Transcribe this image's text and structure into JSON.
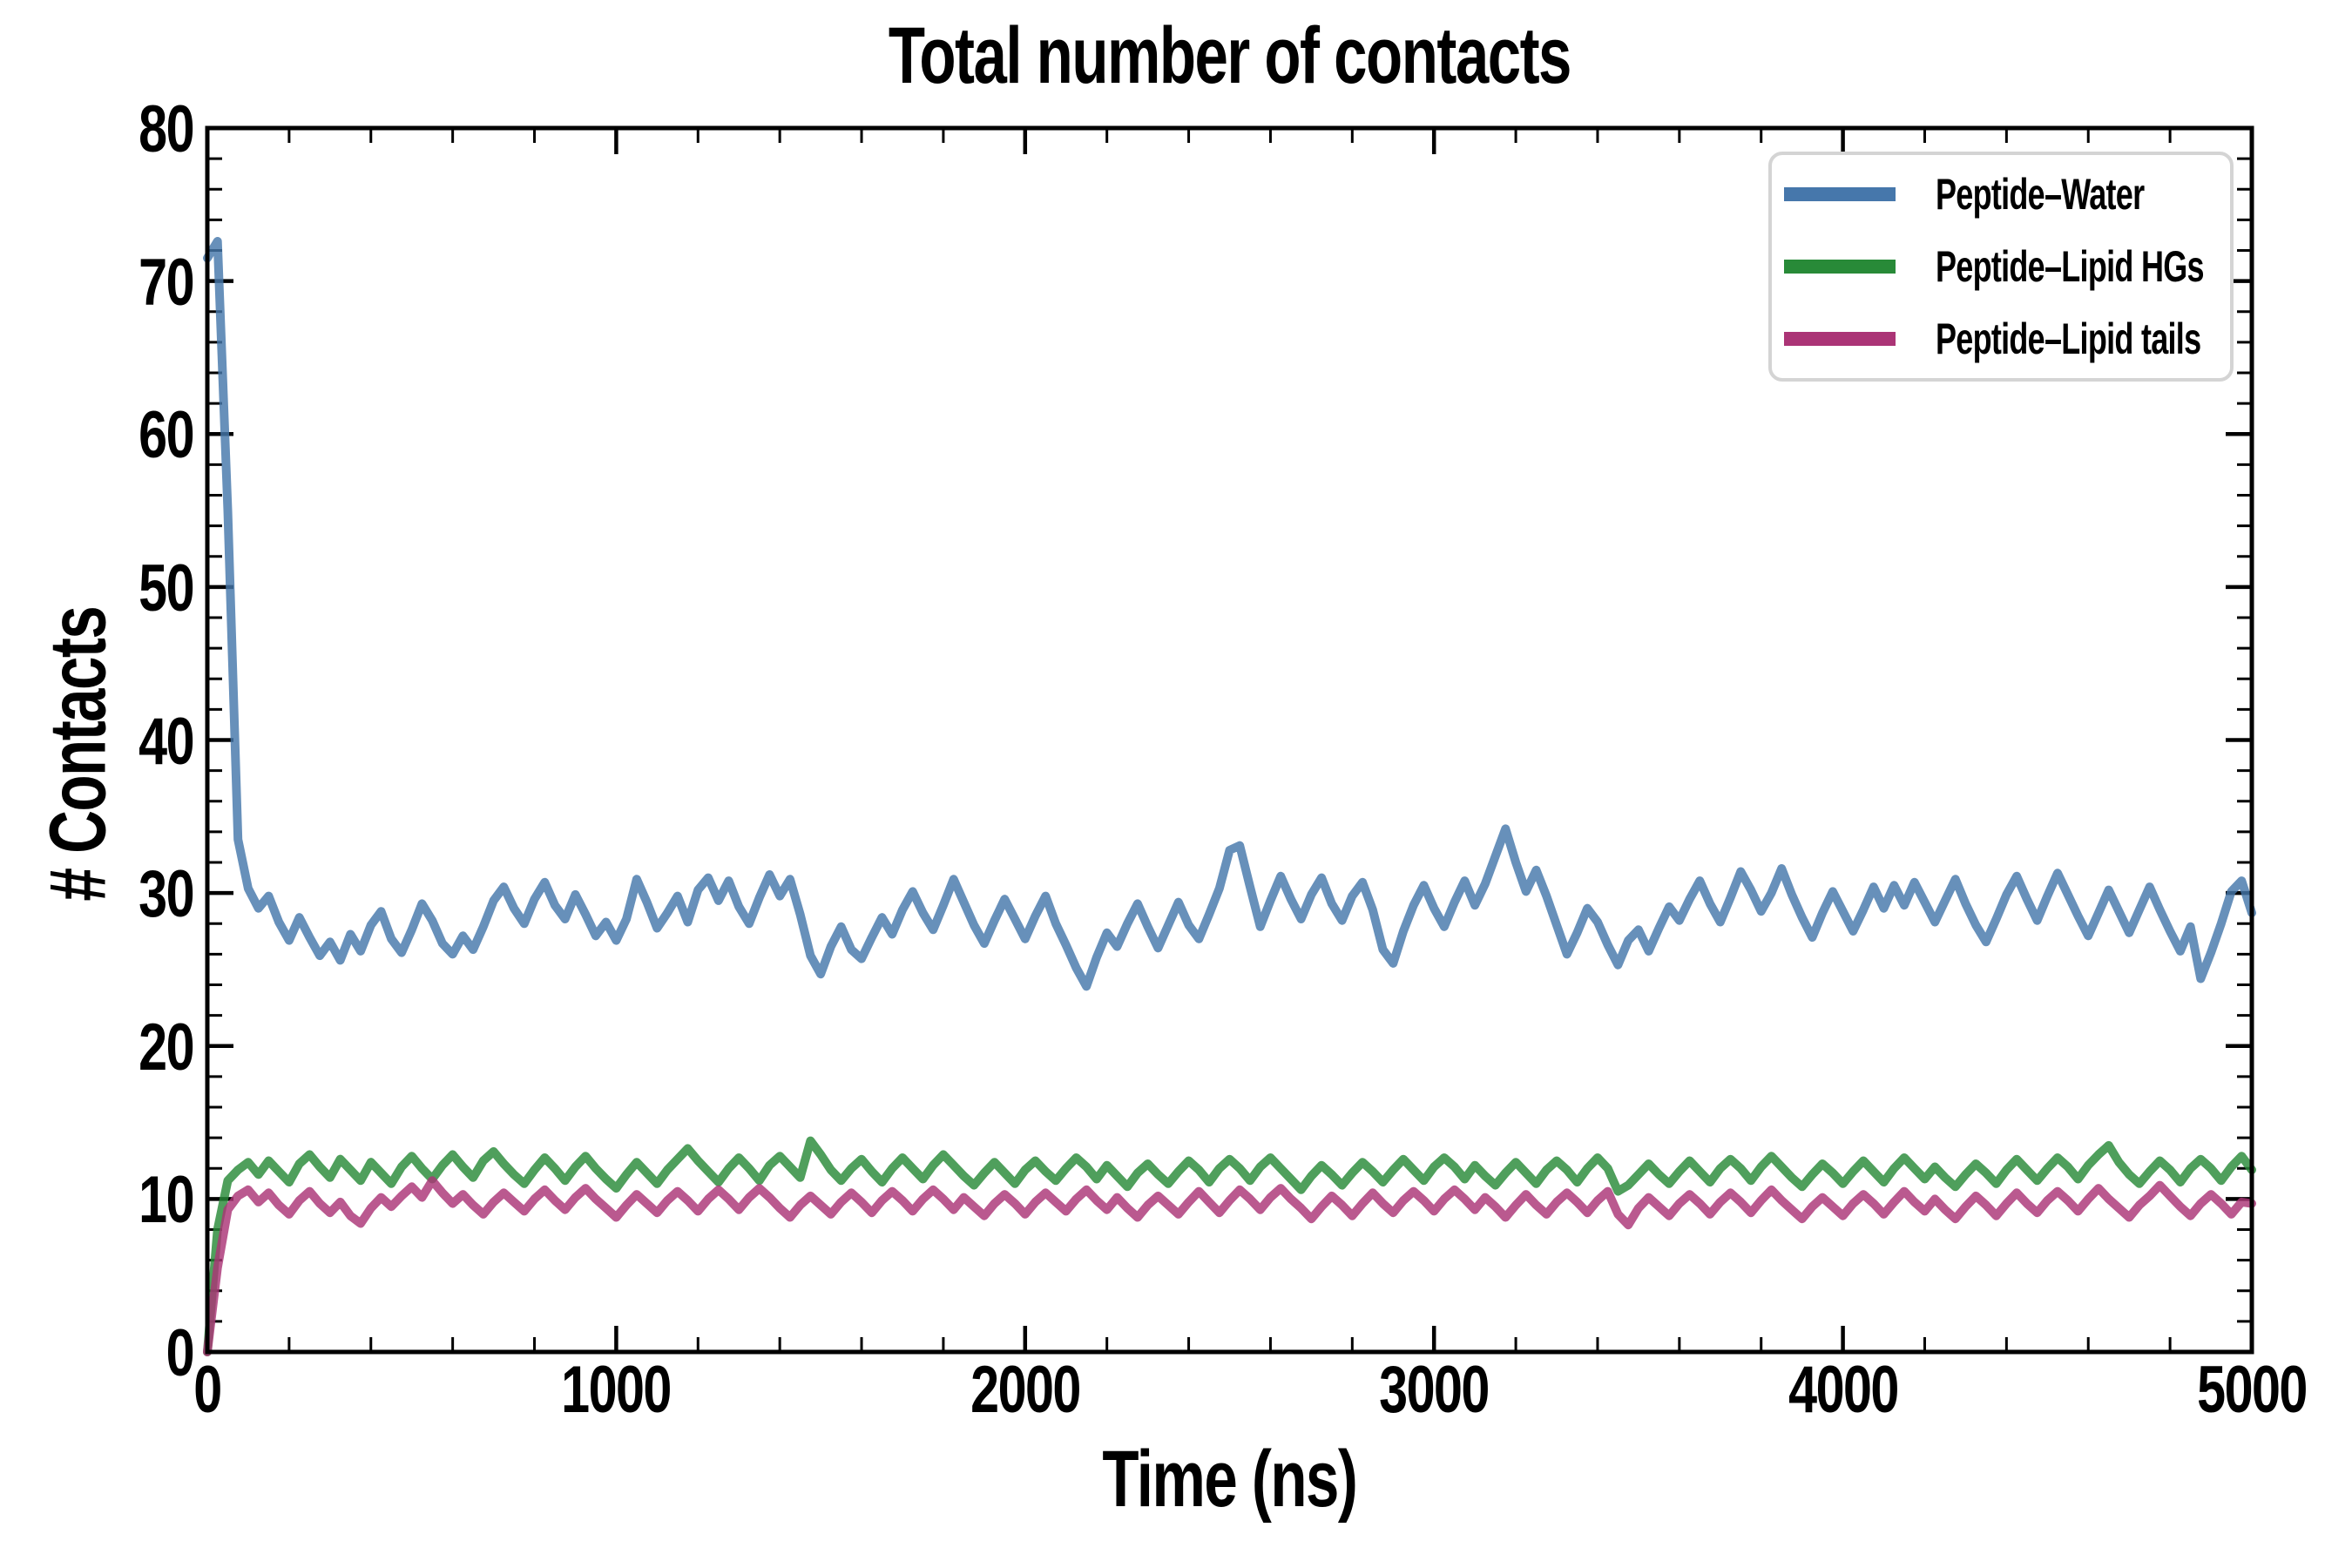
{
  "figure": {
    "background": "#ffffff",
    "text_color": "#000000",
    "spine_color": "#000000",
    "legend_border_color": "#d4d4d4",
    "legend_background": "#ffffff"
  },
  "chart_data": {
    "type": "line",
    "title": "Total number of contacts",
    "xlabel": "Time (ns)",
    "ylabel": "# Contacts",
    "xlim": [
      0,
      5000
    ],
    "ylim": [
      0,
      80
    ],
    "x_major_ticks": [
      0,
      1000,
      2000,
      3000,
      4000,
      5000
    ],
    "x_minor_step": 200,
    "y_major_ticks": [
      0,
      10,
      20,
      30,
      40,
      50,
      60,
      70,
      80
    ],
    "y_minor_step": 2,
    "grid": false,
    "legend_position": "upper right",
    "line_width": 10,
    "line_alpha": 0.82,
    "x_start": 0,
    "x_step": 25,
    "series": [
      {
        "name": "Peptide–Water",
        "color": "#4677ab",
        "values": [
          71.5,
          72.6,
          55.0,
          33.5,
          30.3,
          29.0,
          29.8,
          28.1,
          26.9,
          28.4,
          27.1,
          25.9,
          26.8,
          25.6,
          27.3,
          26.2,
          27.9,
          28.8,
          27.0,
          26.1,
          27.6,
          29.3,
          28.2,
          26.7,
          26.0,
          27.2,
          26.3,
          27.8,
          29.5,
          30.4,
          29.0,
          28.0,
          29.6,
          30.7,
          29.2,
          28.3,
          29.9,
          28.6,
          27.2,
          28.1,
          26.9,
          28.3,
          30.9,
          29.4,
          27.7,
          28.7,
          29.8,
          28.1,
          30.2,
          31.0,
          29.5,
          30.8,
          29.1,
          28.0,
          29.7,
          31.2,
          29.8,
          30.9,
          28.6,
          25.9,
          24.7,
          26.5,
          27.8,
          26.3,
          25.7,
          27.1,
          28.4,
          27.3,
          28.9,
          30.1,
          28.7,
          27.6,
          29.2,
          30.9,
          29.4,
          27.9,
          26.7,
          28.2,
          29.6,
          28.3,
          27.0,
          28.5,
          29.8,
          28.0,
          26.6,
          25.1,
          23.9,
          25.8,
          27.4,
          26.5,
          28.0,
          29.3,
          27.8,
          26.4,
          27.9,
          29.4,
          27.9,
          27.0,
          28.6,
          30.3,
          32.8,
          33.1,
          30.4,
          27.8,
          29.5,
          31.1,
          29.6,
          28.3,
          29.9,
          31.0,
          29.3,
          28.2,
          29.8,
          30.7,
          28.9,
          26.3,
          25.4,
          27.5,
          29.2,
          30.5,
          29.0,
          27.8,
          29.4,
          30.8,
          29.2,
          30.6,
          32.4,
          34.2,
          32.0,
          30.1,
          31.5,
          29.8,
          27.9,
          26.0,
          27.4,
          29.0,
          28.1,
          26.6,
          25.3,
          26.9,
          27.6,
          26.2,
          27.7,
          29.1,
          28.2,
          29.6,
          30.8,
          29.3,
          28.1,
          29.7,
          31.4,
          30.2,
          28.8,
          30.0,
          31.6,
          29.9,
          28.4,
          27.1,
          28.7,
          30.1,
          28.8,
          27.5,
          28.9,
          30.4,
          29.0,
          30.5,
          29.2,
          30.7,
          29.4,
          28.1,
          29.5,
          30.9,
          29.3,
          27.9,
          26.8,
          28.3,
          29.9,
          31.1,
          29.6,
          28.2,
          29.8,
          31.3,
          29.9,
          28.5,
          27.2,
          28.7,
          30.2,
          28.8,
          27.4,
          28.9,
          30.4,
          28.9,
          27.5,
          26.2,
          27.8,
          24.4,
          26.1,
          28.0,
          30.1,
          30.8,
          28.7
        ]
      },
      {
        "name": "Peptide–Lipid HGs",
        "color": "#288a38",
        "values": [
          0.0,
          8.0,
          11.2,
          11.9,
          12.4,
          11.6,
          12.5,
          11.8,
          11.1,
          12.3,
          12.9,
          12.1,
          11.4,
          12.6,
          11.9,
          11.2,
          12.4,
          11.7,
          11.0,
          12.1,
          12.8,
          12.0,
          11.3,
          12.2,
          12.9,
          12.1,
          11.4,
          12.5,
          13.1,
          12.3,
          11.6,
          11.0,
          11.9,
          12.7,
          12.0,
          11.2,
          12.1,
          12.8,
          12.0,
          11.3,
          10.7,
          11.6,
          12.4,
          11.7,
          11.0,
          11.9,
          12.6,
          13.3,
          12.5,
          11.8,
          11.1,
          12.0,
          12.7,
          12.0,
          11.2,
          12.2,
          12.8,
          12.1,
          11.4,
          13.8,
          12.9,
          11.9,
          11.2,
          12.0,
          12.6,
          11.8,
          11.1,
          12.0,
          12.7,
          12.0,
          11.3,
          12.2,
          12.9,
          12.2,
          11.5,
          10.9,
          11.7,
          12.4,
          11.7,
          11.0,
          11.9,
          12.5,
          11.8,
          11.2,
          12.0,
          12.7,
          12.1,
          11.3,
          12.2,
          11.5,
          10.8,
          11.7,
          12.3,
          11.6,
          11.0,
          11.8,
          12.5,
          11.9,
          11.1,
          12.0,
          12.6,
          12.0,
          11.2,
          12.1,
          12.7,
          12.0,
          11.3,
          10.6,
          11.5,
          12.2,
          11.6,
          10.9,
          11.7,
          12.4,
          11.8,
          11.1,
          11.9,
          12.6,
          11.9,
          11.2,
          12.1,
          12.7,
          12.1,
          11.3,
          12.2,
          11.5,
          10.9,
          11.7,
          12.4,
          11.7,
          11.0,
          11.9,
          12.5,
          11.9,
          11.1,
          12.0,
          12.7,
          12.0,
          10.5,
          10.9,
          11.6,
          12.3,
          11.6,
          11.0,
          11.8,
          12.5,
          11.8,
          11.1,
          12.0,
          12.6,
          12.0,
          11.2,
          12.1,
          12.8,
          12.1,
          11.4,
          10.8,
          11.6,
          12.3,
          11.7,
          11.0,
          11.8,
          12.5,
          11.8,
          11.1,
          12.0,
          12.7,
          12.0,
          11.3,
          12.1,
          11.4,
          10.8,
          11.6,
          12.3,
          11.7,
          11.0,
          11.9,
          12.6,
          11.9,
          11.2,
          12.0,
          12.7,
          12.1,
          11.3,
          12.2,
          12.9,
          13.5,
          12.4,
          11.6,
          11.0,
          11.8,
          12.5,
          11.9,
          11.1,
          12.0,
          12.6,
          12.0,
          11.2,
          12.1,
          12.8,
          11.9
        ]
      },
      {
        "name": "Peptide–Lipid tails",
        "color": "#ab3476",
        "values": [
          0.0,
          5.5,
          9.3,
          10.2,
          10.6,
          9.8,
          10.4,
          9.6,
          9.0,
          9.9,
          10.5,
          9.7,
          9.1,
          9.8,
          8.9,
          8.4,
          9.4,
          10.1,
          9.5,
          10.2,
          10.8,
          10.1,
          11.2,
          10.4,
          9.7,
          10.3,
          9.6,
          9.0,
          9.8,
          10.4,
          9.8,
          9.2,
          10.0,
          10.6,
          9.9,
          9.3,
          10.1,
          10.7,
          10.0,
          9.4,
          8.8,
          9.6,
          10.3,
          9.7,
          9.1,
          9.9,
          10.5,
          9.9,
          9.2,
          10.0,
          10.6,
          10.0,
          9.3,
          10.1,
          10.7,
          10.1,
          9.4,
          8.8,
          9.6,
          10.2,
          9.6,
          9.0,
          9.8,
          10.4,
          9.8,
          9.1,
          9.9,
          10.5,
          9.9,
          9.2,
          10.0,
          10.6,
          10.0,
          9.3,
          10.1,
          9.5,
          8.9,
          9.7,
          10.3,
          9.7,
          9.0,
          9.8,
          10.4,
          9.8,
          9.2,
          10.0,
          10.6,
          9.9,
          9.3,
          10.1,
          9.4,
          8.8,
          9.6,
          10.2,
          9.6,
          9.0,
          9.8,
          10.5,
          9.8,
          9.1,
          9.9,
          10.6,
          10.0,
          9.3,
          10.1,
          10.7,
          10.0,
          9.4,
          8.7,
          9.5,
          10.2,
          9.6,
          8.9,
          9.7,
          10.4,
          9.7,
          9.1,
          9.9,
          10.5,
          9.9,
          9.2,
          10.0,
          10.6,
          10.0,
          9.3,
          10.1,
          9.5,
          8.8,
          9.6,
          10.3,
          9.6,
          9.0,
          9.8,
          10.4,
          9.8,
          9.1,
          9.9,
          10.5,
          9.0,
          8.3,
          9.4,
          10.1,
          9.5,
          8.9,
          9.7,
          10.3,
          9.7,
          9.0,
          9.8,
          10.4,
          9.8,
          9.1,
          9.9,
          10.6,
          9.9,
          9.3,
          8.7,
          9.5,
          10.1,
          9.5,
          8.9,
          9.7,
          10.3,
          9.7,
          9.0,
          9.8,
          10.5,
          9.8,
          9.2,
          10.0,
          9.3,
          8.7,
          9.5,
          10.2,
          9.6,
          8.9,
          9.7,
          10.4,
          9.7,
          9.1,
          9.9,
          10.5,
          9.9,
          9.2,
          10.0,
          10.7,
          10.0,
          9.4,
          8.8,
          9.6,
          10.2,
          10.9,
          10.2,
          9.5,
          8.9,
          9.7,
          10.3,
          9.7,
          9.0,
          9.8,
          9.7
        ]
      }
    ]
  }
}
